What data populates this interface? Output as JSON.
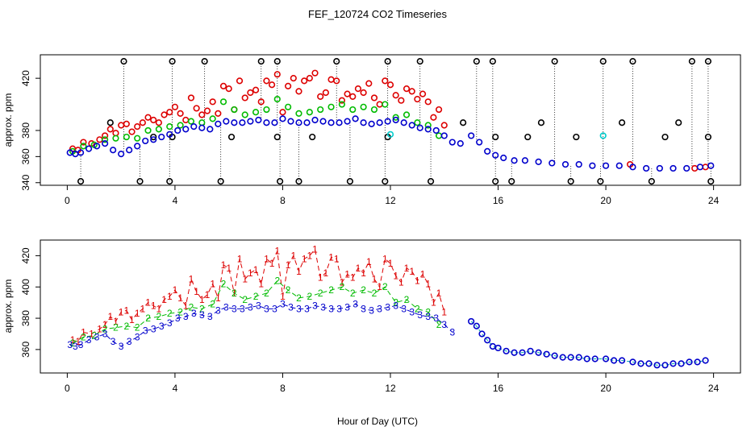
{
  "title": "FEF_120724  CO2 Timeseries",
  "xlabel": "Hour of Day (UTC)",
  "colors": {
    "series1": "#dd0000",
    "series2": "#00bb00",
    "series3": "#0000cc",
    "outlier": "#000000",
    "cyan": "#00cccc"
  },
  "chart_data": [
    {
      "type": "scatter",
      "title": "FEF_120724  CO2 Timeseries",
      "ylabel": "approx. ppm",
      "xlim": [
        -1,
        25
      ],
      "ylim": [
        338,
        438
      ],
      "xticks": [
        0,
        4,
        8,
        12,
        16,
        20,
        24
      ],
      "yticks": [
        340,
        360,
        380,
        420
      ],
      "marker": "circle",
      "series": [
        {
          "name": "1",
          "color": "#dd0000",
          "x": [
            0.2,
            0.4,
            0.6,
            0.9,
            1.2,
            1.4,
            1.6,
            1.8,
            2.0,
            2.2,
            2.4,
            2.6,
            2.8,
            3.0,
            3.2,
            3.4,
            3.6,
            3.8,
            4.0,
            4.2,
            4.4,
            4.6,
            4.8,
            5.0,
            5.2,
            5.4,
            5.6,
            5.8,
            6.0,
            6.2,
            6.4,
            6.6,
            6.8,
            7.0,
            7.2,
            7.4,
            7.6,
            7.8,
            8.0,
            8.2,
            8.4,
            8.6,
            8.8,
            9.0,
            9.2,
            9.4,
            9.6,
            9.8,
            10.0,
            10.2,
            10.4,
            10.6,
            10.8,
            11.0,
            11.2,
            11.4,
            11.6,
            11.8,
            12.0,
            12.2,
            12.4,
            12.6,
            12.8,
            13.0,
            13.2,
            13.4,
            13.6,
            13.8,
            14.0,
            20.9,
            23.3,
            23.7
          ],
          "y": [
            366,
            365,
            371,
            370,
            373,
            376,
            381,
            378,
            384,
            385,
            379,
            383,
            386,
            390,
            388,
            386,
            392,
            394,
            398,
            393,
            388,
            405,
            397,
            392,
            395,
            402,
            393,
            414,
            412,
            396,
            418,
            405,
            409,
            411,
            402,
            418,
            415,
            423,
            394,
            414,
            420,
            410,
            418,
            420,
            424,
            406,
            409,
            419,
            418,
            403,
            408,
            406,
            412,
            409,
            416,
            405,
            400,
            418,
            415,
            407,
            403,
            412,
            410,
            404,
            408,
            402,
            390,
            396,
            384,
            354,
            351,
            352
          ]
        },
        {
          "name": "2",
          "color": "#00bb00",
          "x": [
            0.2,
            0.6,
            1.0,
            1.4,
            1.8,
            2.2,
            2.6,
            3.0,
            3.4,
            3.8,
            4.2,
            4.6,
            5.0,
            5.4,
            5.8,
            6.2,
            6.6,
            7.0,
            7.4,
            7.8,
            8.2,
            8.6,
            9.0,
            9.4,
            9.8,
            10.2,
            10.6,
            11.0,
            11.4,
            11.8,
            12.2,
            12.6,
            13.0,
            13.4,
            13.8
          ],
          "y": [
            364,
            368,
            369,
            373,
            374,
            375,
            374,
            380,
            381,
            383,
            384,
            387,
            386,
            389,
            402,
            396,
            392,
            394,
            396,
            404,
            398,
            393,
            394,
            396,
            398,
            400,
            396,
            398,
            396,
            400,
            390,
            392,
            386,
            384,
            376
          ]
        },
        {
          "name": "3",
          "color": "#0000cc",
          "x": [
            0.1,
            0.3,
            0.5,
            0.8,
            1.1,
            1.4,
            1.7,
            2.0,
            2.3,
            2.6,
            2.9,
            3.2,
            3.5,
            3.8,
            4.1,
            4.4,
            4.7,
            5.0,
            5.3,
            5.6,
            5.9,
            6.2,
            6.5,
            6.8,
            7.1,
            7.4,
            7.7,
            8.0,
            8.3,
            8.6,
            8.9,
            9.2,
            9.5,
            9.8,
            10.1,
            10.4,
            10.7,
            11.0,
            11.3,
            11.6,
            11.9,
            12.2,
            12.5,
            12.8,
            13.1,
            13.4,
            13.7,
            14.0,
            14.3,
            14.6,
            15.0,
            15.3,
            15.6,
            15.9,
            16.2,
            16.6,
            17.0,
            17.5,
            18.0,
            18.5,
            19.0,
            19.5,
            20.0,
            20.5,
            21.0,
            21.5,
            22.0,
            22.5,
            23.0,
            23.5,
            23.9
          ],
          "y": [
            363,
            362,
            363,
            366,
            368,
            370,
            365,
            362,
            365,
            368,
            372,
            373,
            375,
            377,
            380,
            381,
            383,
            382,
            381,
            385,
            387,
            386,
            386,
            387,
            388,
            386,
            386,
            389,
            387,
            386,
            386,
            388,
            387,
            386,
            386,
            387,
            389,
            386,
            385,
            386,
            387,
            388,
            386,
            384,
            382,
            381,
            380,
            376,
            371,
            370,
            376,
            371,
            364,
            361,
            359,
            357,
            357,
            356,
            355,
            354,
            354,
            353,
            353,
            353,
            352,
            351,
            351,
            351,
            351,
            352,
            353
          ]
        }
      ],
      "outliers": {
        "color": "#000000",
        "high_x": [
          2.1,
          3.9,
          5.1,
          7.2,
          7.8,
          10.0,
          11.9,
          13.1,
          15.2,
          15.8,
          18.1,
          19.9,
          21.0,
          23.2,
          23.8
        ],
        "high_y": 433,
        "low_x": [
          0.5,
          2.7,
          3.8,
          5.7,
          7.9,
          8.6,
          10.5,
          11.8,
          13.5,
          15.9,
          16.5,
          18.7,
          19.8,
          21.7,
          23.9
        ],
        "low_y": 341,
        "mid_x": [
          1.6,
          3.2,
          3.9,
          6.1,
          7.8,
          9.1,
          11.9,
          14.7,
          15.9,
          17.1,
          17.6,
          18.9,
          20.6,
          22.2,
          22.7,
          23.8
        ],
        "mid_y": [
          386,
          375,
          375,
          375,
          375,
          375,
          375,
          386,
          375,
          375,
          386,
          375,
          386,
          375,
          386,
          375
        ]
      },
      "cyan_points": {
        "color": "#00cccc",
        "x": [
          12.0,
          19.9
        ],
        "y": [
          377,
          376
        ]
      }
    },
    {
      "type": "scatter",
      "ylabel": "approx. ppm",
      "xlim": [
        -1,
        25
      ],
      "ylim": [
        345,
        430
      ],
      "xticks": [
        0,
        4,
        8,
        12,
        16,
        20,
        24
      ],
      "yticks": [
        360,
        380,
        400,
        420
      ],
      "marker": "digit",
      "series_labels": [
        "1",
        "2",
        "3"
      ],
      "tail_series": {
        "color": "#0000cc",
        "x": [
          15.0,
          15.2,
          15.4,
          15.6,
          15.8,
          16.0,
          16.3,
          16.6,
          16.9,
          17.2,
          17.5,
          17.8,
          18.1,
          18.4,
          18.7,
          19.0,
          19.3,
          19.6,
          20.0,
          20.3,
          20.6,
          21.0,
          21.3,
          21.6,
          21.9,
          22.2,
          22.5,
          22.8,
          23.1,
          23.4,
          23.7
        ],
        "y": [
          378,
          375,
          370,
          366,
          362,
          361,
          359,
          358,
          358,
          359,
          358,
          357,
          356,
          355,
          355,
          355,
          354,
          354,
          354,
          353,
          353,
          352,
          351,
          351,
          350,
          350,
          351,
          351,
          352,
          352,
          353
        ]
      }
    }
  ]
}
